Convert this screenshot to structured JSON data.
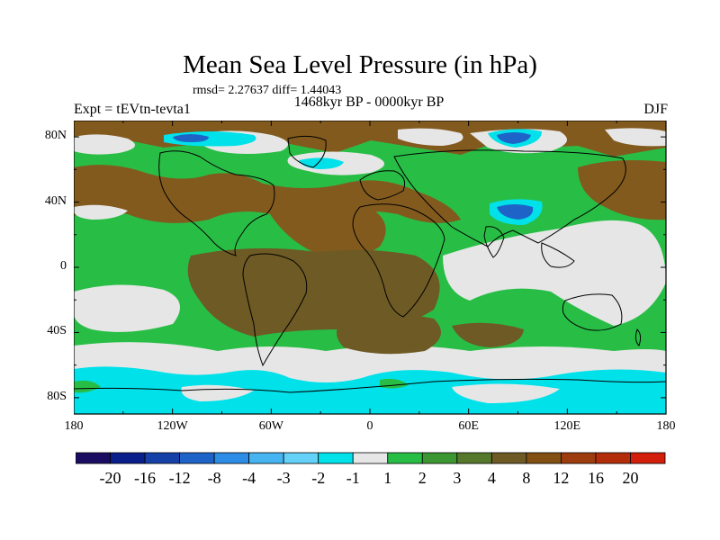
{
  "title": "Mean Sea Level Pressure (in hPa)",
  "stats_text": "rmsd= 2.27637 diff= 1.44043",
  "experiment": "Expt = tEVtn-tevta1",
  "period": "1468kyr BP - 0000kyr BP",
  "season": "DJF",
  "axes": {
    "lon_labels": [
      "180",
      "120W",
      "60W",
      "0",
      "60E",
      "120E",
      "180"
    ],
    "lat_labels": [
      "80N",
      "40N",
      "0",
      "40S",
      "80S"
    ]
  },
  "colorbar": {
    "colors": [
      "#1a0c60",
      "#0a1e8c",
      "#1440a8",
      "#1e64c8",
      "#2d8ce6",
      "#46b4f0",
      "#64d2f8",
      "#00e1ea",
      "#e6e6e6",
      "#28be46",
      "#3c9632",
      "#55782d",
      "#6e5a24",
      "#825014",
      "#9c3c0f",
      "#b42d0a",
      "#d21e0a"
    ],
    "labels": [
      "-20",
      "-16",
      "-12",
      "-8",
      "-4",
      "-3",
      "-2",
      "-1",
      "1",
      "2",
      "3",
      "4",
      "8",
      "12",
      "16",
      "20"
    ]
  },
  "legend_colors": {
    "brown": "#825a1e",
    "olive": "#6e5a24",
    "green": "#28be46",
    "white": "#e6e6e6",
    "cyan": "#00e1ea",
    "blue": "#1e64c8"
  }
}
